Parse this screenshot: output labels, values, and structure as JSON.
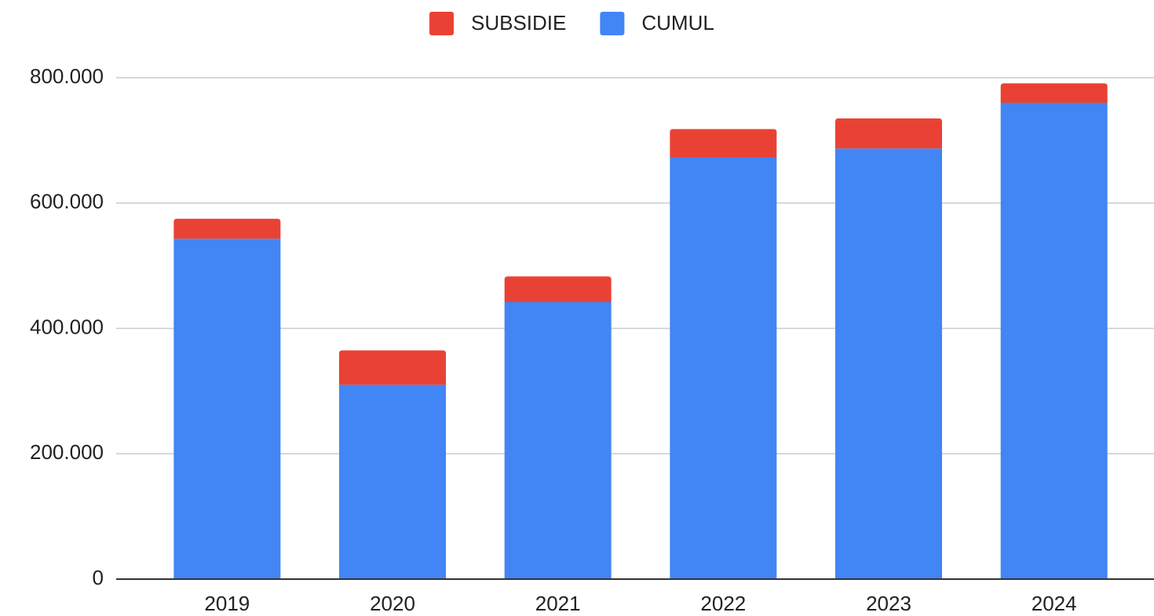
{
  "chart_data": {
    "type": "stacked_bar",
    "categories": [
      "2019",
      "2020",
      "2021",
      "2022",
      "2023",
      "2024"
    ],
    "series": [
      {
        "name": "SUBSIDIE",
        "color": "#e94235",
        "values": [
          32000,
          55000,
          41000,
          45000,
          48000,
          31000
        ]
      },
      {
        "name": "CUMUL",
        "color": "#4285f4",
        "values": [
          543000,
          310000,
          442000,
          673000,
          687000,
          760000
        ]
      }
    ],
    "ylim": [
      0,
      800000
    ],
    "yticks": [
      0,
      {
        "value": 200000,
        "label": "200.000"
      },
      {
        "value": 400000,
        "label": "400.000"
      },
      {
        "value": 600000,
        "label": "600.000"
      },
      {
        "value": 800000,
        "label": "800.000"
      }
    ],
    "grid": true,
    "legend": "top"
  }
}
